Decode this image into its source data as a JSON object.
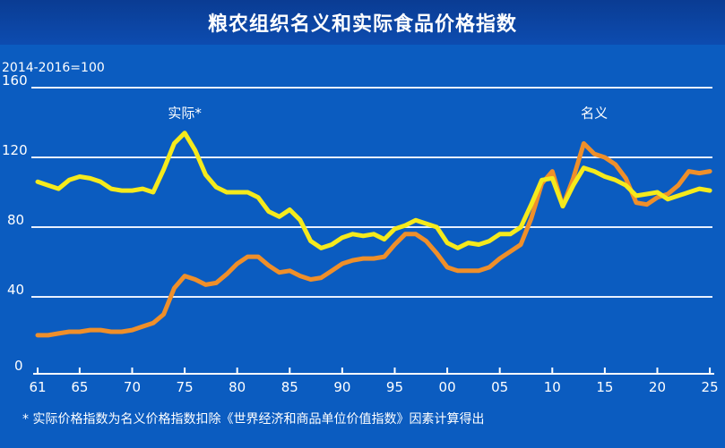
{
  "title": "粮农组织名义和实际食品价格指数",
  "footnote": "* 实际价格指数为名义价格指数扣除《世界经济和商品单位价值指数》因素计算得出",
  "colors": {
    "background": "#0b5cc0",
    "real": "#f5ea1c",
    "nominal": "#ef8f2a",
    "grid": "#e8f0ff"
  },
  "chart_data": {
    "type": "line",
    "title": "粮农组织名义和实际食品价格指数",
    "ylabel": "2014-2016=100",
    "xlabel": "",
    "ylim": [
      0,
      160
    ],
    "xlim": [
      1961,
      2025
    ],
    "yticks": [
      0,
      40,
      80,
      120,
      160
    ],
    "xtick_labels": [
      {
        "year": 1961,
        "label": "61"
      },
      {
        "year": 1965,
        "label": "65"
      },
      {
        "year": 1970,
        "label": "70"
      },
      {
        "year": 1975,
        "label": "75"
      },
      {
        "year": 1980,
        "label": "80"
      },
      {
        "year": 1985,
        "label": "85"
      },
      {
        "year": 1990,
        "label": "90"
      },
      {
        "year": 1995,
        "label": "95"
      },
      {
        "year": 2000,
        "label": "00"
      },
      {
        "year": 2005,
        "label": "05"
      },
      {
        "year": 2010,
        "label": "10"
      },
      {
        "year": 2015,
        "label": "15"
      },
      {
        "year": 2020,
        "label": "20"
      },
      {
        "year": 2025,
        "label": "25"
      }
    ],
    "grid": true,
    "x_start": 1961,
    "series": [
      {
        "name": "实际*",
        "color": "#f5ea1c",
        "values": [
          106,
          104,
          102,
          107,
          109,
          108,
          106,
          102,
          101,
          101,
          102,
          100,
          113,
          128,
          134,
          124,
          110,
          103,
          100,
          100,
          100,
          97,
          89,
          86,
          90,
          84,
          72,
          68,
          70,
          74,
          76,
          75,
          76,
          73,
          79,
          81,
          84,
          82,
          80,
          71,
          68,
          71,
          70,
          72,
          76,
          76,
          80,
          93,
          107,
          108,
          92,
          104,
          114,
          112,
          109,
          107,
          104,
          98,
          99,
          100,
          96,
          98,
          100,
          102,
          101
        ]
      },
      {
        "name": "名义",
        "color": "#ef8f2a",
        "values": [
          18,
          18,
          19,
          20,
          20,
          21,
          21,
          20,
          20,
          21,
          23,
          25,
          30,
          45,
          52,
          50,
          47,
          48,
          53,
          59,
          63,
          63,
          58,
          54,
          55,
          52,
          50,
          51,
          55,
          59,
          61,
          62,
          62,
          63,
          70,
          76,
          76,
          72,
          65,
          57,
          55,
          55,
          55,
          57,
          62,
          66,
          70,
          85,
          105,
          112,
          92,
          108,
          128,
          122,
          120,
          116,
          108,
          94,
          93,
          97,
          99,
          104,
          112,
          111,
          112
        ]
      }
    ],
    "annotations": [
      {
        "text": "实际*",
        "series": "real",
        "year": 1975,
        "value": 146
      },
      {
        "text": "名义",
        "series": "nominal",
        "year": 2014,
        "value": 146
      }
    ]
  }
}
